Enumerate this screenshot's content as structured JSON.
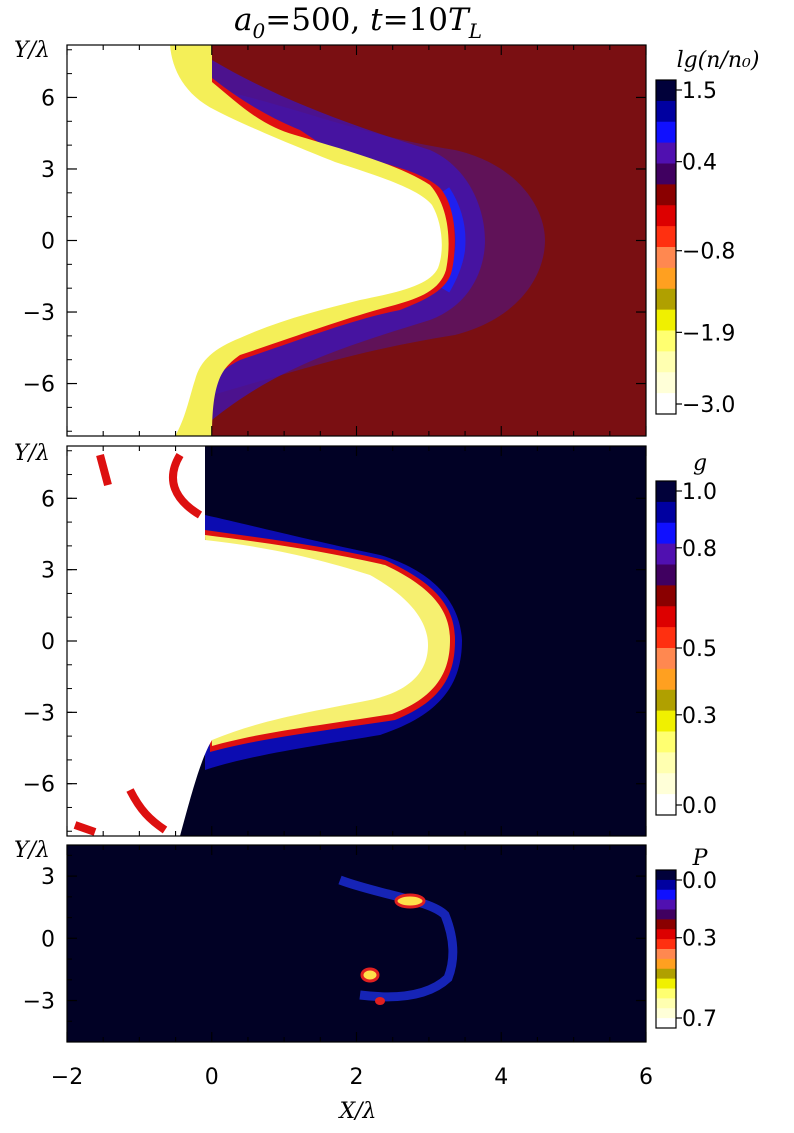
{
  "chart_data": {
    "type": "heatmap",
    "title": {
      "a": "a",
      "a_sub": "0",
      "eq1": "=500, ",
      "t": "t",
      "eq2": "=10",
      "T": "T",
      "T_sub": "L"
    },
    "xlabel": "X/λ",
    "x_ticks": [
      "−2",
      "0",
      "2",
      "4",
      "6"
    ],
    "xlim": [
      -2,
      6
    ],
    "panels": [
      {
        "id": "density",
        "ylabel": "Y/λ",
        "ylim": [
          -8.2,
          8.2
        ],
        "y_ticks": [
          {
            "v": 6,
            "t": "6"
          },
          {
            "v": 3,
            "t": "3"
          },
          {
            "v": 0,
            "t": "0"
          },
          {
            "v": -3,
            "t": "−3"
          },
          {
            "v": -6,
            "t": "−6"
          }
        ],
        "colorbar_label": "lg(n/n₀)",
        "colorbar_ticks": [
          {
            "v": 1.5,
            "t": "1.5"
          },
          {
            "v": 0.4,
            "t": "0.4"
          },
          {
            "v": -0.8,
            "t": "−0.8"
          },
          {
            "v": -1.9,
            "t": "−1.9"
          },
          {
            "v": -3.0,
            "t": "−3.0"
          }
        ],
        "colorbar_range": [
          -3.0,
          1.5
        ],
        "colorbar_direction": "top-high",
        "background": "#7a0f12"
      },
      {
        "id": "gamma",
        "ylabel": "Y/λ",
        "ylim": [
          -8.2,
          8.2
        ],
        "y_ticks": [
          {
            "v": 6,
            "t": "6"
          },
          {
            "v": 3,
            "t": "3"
          },
          {
            "v": 0,
            "t": "0"
          },
          {
            "v": -3,
            "t": "−3"
          },
          {
            "v": -6,
            "t": "−6"
          }
        ],
        "colorbar_label": "g",
        "colorbar_ticks": [
          {
            "v": 1.0,
            "t": "1.0"
          },
          {
            "v": 0.8,
            "t": "0.8"
          },
          {
            "v": 0.5,
            "t": "0.5"
          },
          {
            "v": 0.3,
            "t": "0.3"
          },
          {
            "v": 0.0,
            "t": "0.0"
          }
        ],
        "colorbar_range": [
          0.0,
          1.0
        ],
        "colorbar_direction": "top-high",
        "background": "#010125"
      },
      {
        "id": "pressure",
        "ylabel": "Y/λ",
        "ylim": [
          -5,
          4.5
        ],
        "y_ticks": [
          {
            "v": 3,
            "t": "3"
          },
          {
            "v": 0,
            "t": "0"
          },
          {
            "v": -3,
            "t": "−3"
          }
        ],
        "colorbar_label": "P",
        "colorbar_ticks": [
          {
            "v": 0.0,
            "t": "0.0"
          },
          {
            "v": 0.3,
            "t": "0.3"
          },
          {
            "v": 0.7,
            "t": "0.7"
          }
        ],
        "colorbar_range": [
          0.0,
          0.7
        ],
        "colorbar_direction": "top-low",
        "background": "#010125"
      }
    ],
    "colormap": [
      "#01013a",
      "#0000a0",
      "#1010ff",
      "#5010b0",
      "#400060",
      "#8a0000",
      "#dd0000",
      "#ff3010",
      "#ff8850",
      "#ffa020",
      "#b0a000",
      "#f0f000",
      "#ffff70",
      "#ffffb0",
      "#ffffd8",
      "#ffffff"
    ]
  }
}
